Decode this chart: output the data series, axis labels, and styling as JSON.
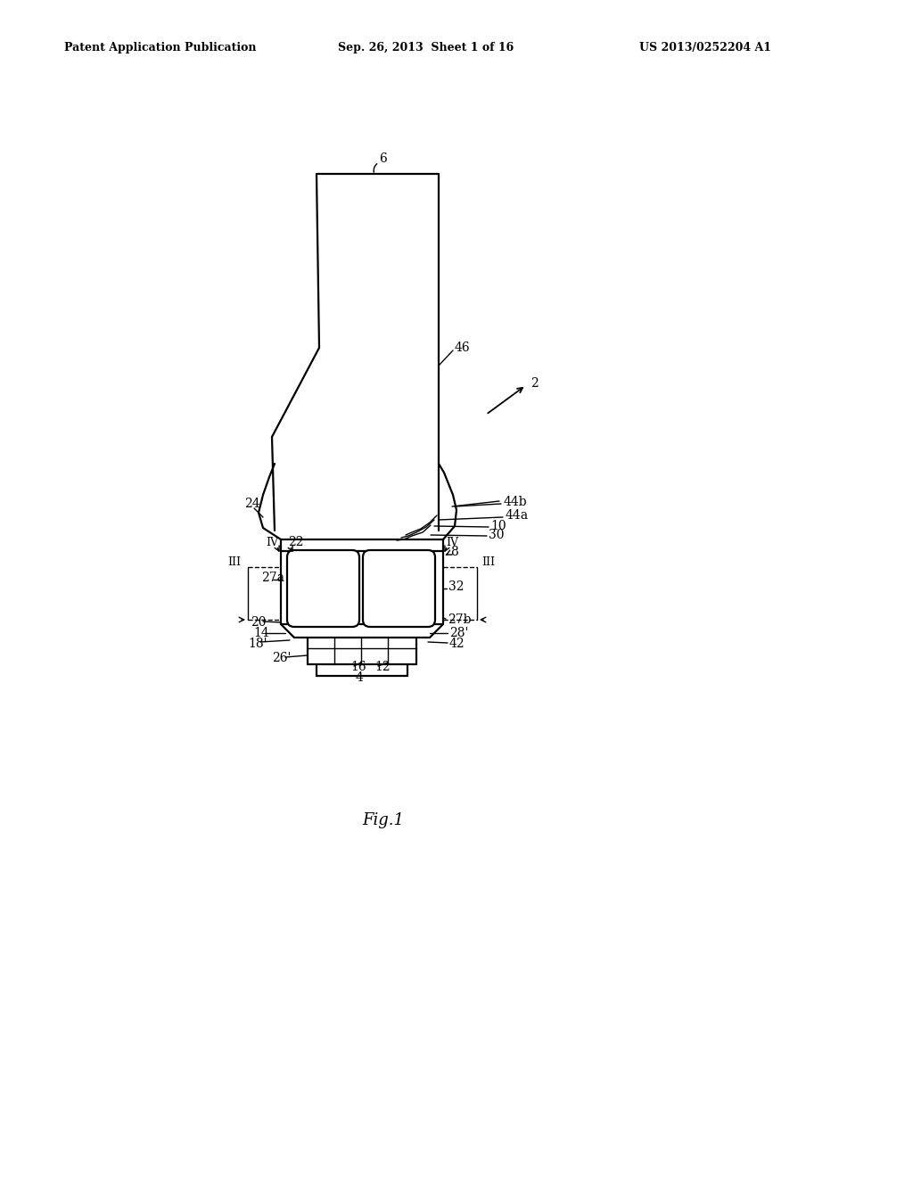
{
  "background_color": "#ffffff",
  "line_color": "#000000",
  "header_left": "Patent Application Publication",
  "header_center": "Sep. 26, 2013  Sheet 1 of 16",
  "header_right": "US 2013/0252204 A1",
  "fig_label": "Fig.1",
  "lw": 1.6,
  "lw_thin": 1.0,
  "fs": 10,
  "fs_header": 9,
  "fs_fig": 13
}
